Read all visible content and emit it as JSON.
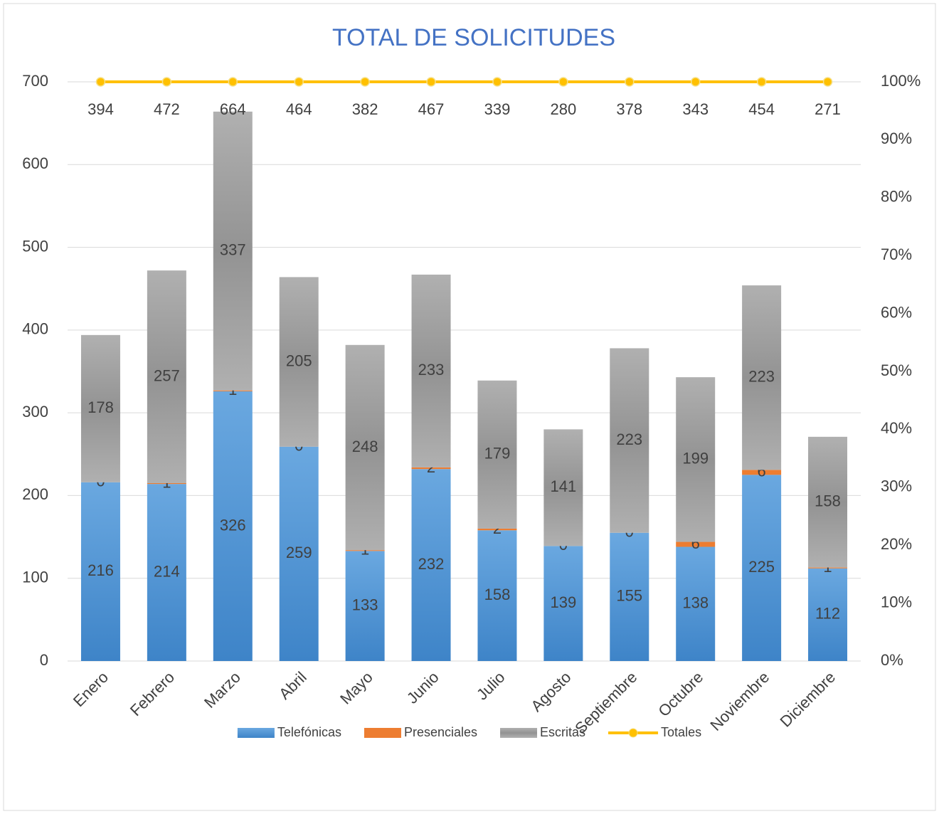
{
  "chart_data": {
    "type": "bar",
    "stacked": true,
    "title": "TOTAL DE SOLICITUDES",
    "categories": [
      "Enero",
      "Febrero",
      "Marzo",
      "Abril",
      "Mayo",
      "Junio",
      "Julio",
      "Agosto",
      "Septiembre",
      "Octubre",
      "Noviembre",
      "Diciembre"
    ],
    "series": [
      {
        "name": "Telefónicas",
        "color": "#5b9bd5",
        "values": [
          216,
          214,
          326,
          259,
          133,
          232,
          158,
          139,
          155,
          138,
          225,
          112
        ]
      },
      {
        "name": "Presenciales",
        "color": "#ed7d31",
        "values": [
          0,
          1,
          1,
          0,
          1,
          2,
          2,
          0,
          0,
          6,
          6,
          1
        ]
      },
      {
        "name": "Escritas",
        "color": "#a5a5a5",
        "values": [
          178,
          257,
          337,
          205,
          248,
          233,
          179,
          141,
          223,
          199,
          223,
          158
        ]
      },
      {
        "name": "Totales",
        "color": "#ffc000",
        "type": "line",
        "axis": "y2",
        "stacking": "percent",
        "values": [
          394,
          472,
          664,
          464,
          382,
          467,
          339,
          280,
          378,
          343,
          454,
          271
        ]
      }
    ],
    "ylim": [
      0,
      700
    ],
    "yticks": [
      0,
      100,
      200,
      300,
      400,
      500,
      600,
      700
    ],
    "y2lim": [
      0,
      100
    ],
    "y2ticks": [
      {
        "value": 0,
        "label": "0%"
      },
      {
        "value": 10,
        "label": "10%"
      },
      {
        "value": 20,
        "label": "20%"
      },
      {
        "value": 30,
        "label": "30%"
      },
      {
        "value": 40,
        "label": "40%"
      },
      {
        "value": 50,
        "label": "50%"
      },
      {
        "value": 60,
        "label": "60%"
      },
      {
        "value": 70,
        "label": "70%"
      },
      {
        "value": 80,
        "label": "80%"
      },
      {
        "value": 90,
        "label": "90%"
      },
      {
        "value": 100,
        "label": "100%"
      }
    ],
    "grid": true,
    "legend": "bottom"
  }
}
